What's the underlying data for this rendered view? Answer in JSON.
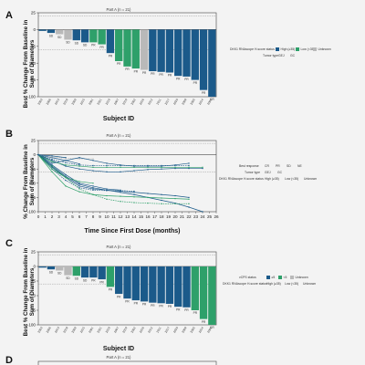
{
  "colors": {
    "high": "#1b5a8a",
    "low": "#2ea06a",
    "unknown": "#b9b9b9",
    "frame": "#444444",
    "ref": "#888888",
    "bg": "#f3f3f3"
  },
  "panels": {
    "A": {
      "letter": "A",
      "title": "Part A (n = 21)",
      "ylabel_lines": [
        "Best % Change From Baseline in",
        "Sum of Diameters"
      ],
      "xlabel": "Subject ID",
      "legend": {
        "l1_label": "DKK1 RNAscope H-score status",
        "l1_items": [
          "High (≥35)",
          "Low (<35)",
          "Unknown"
        ],
        "l2_label": "Tumor type",
        "l2_items": [
          "GEJ",
          "GC"
        ]
      }
    },
    "B": {
      "letter": "B",
      "title": "Part A (n = 21)",
      "ylabel_lines": [
        "% Change From Baseline in",
        "Sum of Diameters"
      ],
      "xlabel": "Time Since First Dose (months)",
      "legend": {
        "r1_label": "Best response",
        "r1_items": [
          "CR",
          "PR",
          "SD",
          "NE"
        ],
        "r2_label": "Tumor type",
        "r2_items": [
          "GEJ",
          "GC"
        ],
        "r3_label": "DKK1 RNAscope H-score status",
        "r3_items": [
          "High (≥35)",
          "Low (<35)",
          "Unknown"
        ]
      }
    },
    "C": {
      "letter": "C",
      "title": "Part A (n = 21)",
      "ylabel_lines": [
        "Best % Change From Baseline in",
        "Sum of Diameters"
      ],
      "xlabel": "Subject ID",
      "legend": {
        "l1_label": "vCPS status",
        "l1_items": [
          "≥5",
          "<5",
          "Unknown"
        ],
        "l2_label": "DKK1 RNAscope H-score status",
        "l2_items": [
          "High (≥35)",
          "Low (<35)",
          "Unknown"
        ]
      }
    },
    "D": {
      "letter": "D",
      "title": "Part A (n = 21)"
    }
  },
  "chart_data": [
    {
      "panel": "A",
      "type": "bar",
      "ylim": [
        -100,
        25
      ],
      "yticks": [
        25,
        0,
        -25,
        -50,
        -75,
        -100
      ],
      "ref_lines": [
        20,
        -30
      ],
      "values": [
        -2,
        -5,
        -7,
        -15,
        -16,
        -19,
        -19,
        -22,
        -35,
        -47,
        -55,
        -58,
        -60,
        -62,
        -63,
        -64,
        -69,
        -70,
        -75,
        -90,
        -100
      ],
      "groups": [
        "high",
        "high",
        "unknown",
        "unknown",
        "high",
        "high",
        "low",
        "low",
        "high",
        "low",
        "low",
        "low",
        "unknown",
        "high",
        "high",
        "high",
        "high",
        "high",
        "high",
        "high",
        "high"
      ],
      "responses": [
        "",
        "SD",
        "SD",
        "SD",
        "SD",
        "SD",
        "PR",
        "PR",
        "PR",
        "PR",
        "PR",
        "PR",
        "PR",
        "PR",
        "PR",
        "PR",
        "PR",
        "PR",
        "PR",
        "PR",
        "CR"
      ],
      "subject_ids": [
        "2003",
        "2006",
        "2013",
        "2018",
        "2009",
        "2015",
        "2001",
        "2021",
        "2019",
        "2007",
        "2010",
        "2002",
        "2016",
        "2012",
        "2011",
        "2017",
        "2020",
        "2008",
        "2005",
        "2014",
        "2004"
      ]
    },
    {
      "panel": "B",
      "type": "line",
      "xlim": [
        0,
        26
      ],
      "ylim": [
        -100,
        25
      ],
      "yticks": [
        25,
        0,
        -25,
        -50,
        -75,
        -100
      ],
      "xticks": [
        0,
        1,
        2,
        3,
        4,
        5,
        6,
        7,
        8,
        9,
        10,
        11,
        12,
        13,
        14,
        15,
        16,
        17,
        18,
        19,
        20,
        21,
        22,
        23,
        24,
        25,
        26
      ],
      "ref_lines": [
        20,
        -30
      ],
      "series": [
        {
          "group": "high",
          "x": [
            0,
            2,
            4,
            6,
            8,
            10,
            12,
            14,
            16,
            18,
            20,
            22
          ],
          "y": [
            0,
            -22,
            -40,
            -55,
            -60,
            -62,
            -64,
            -66,
            -68,
            -70,
            -72,
            -75
          ]
        },
        {
          "group": "high",
          "x": [
            0,
            2,
            4,
            6,
            8,
            10,
            12,
            14,
            16,
            18,
            20,
            22,
            24
          ],
          "y": [
            0,
            -20,
            -38,
            -52,
            -58,
            -62,
            -66,
            -70,
            -75,
            -80,
            -85,
            -92,
            -100
          ]
        },
        {
          "group": "high",
          "x": [
            0,
            2,
            4,
            6,
            8,
            10,
            12,
            14
          ],
          "y": [
            0,
            -25,
            -45,
            -58,
            -62,
            -63,
            -63,
            -64
          ]
        },
        {
          "group": "high",
          "x": [
            0,
            2,
            4,
            6,
            8,
            10,
            12
          ],
          "y": [
            0,
            -18,
            -35,
            -50,
            -55,
            -60,
            -62
          ]
        },
        {
          "group": "low",
          "x": [
            0,
            2,
            4,
            6,
            8,
            10,
            12,
            14,
            16,
            18,
            20,
            22
          ],
          "y": [
            0,
            -30,
            -55,
            -65,
            -70,
            -72,
            -73,
            -74,
            -75,
            -76,
            -77,
            -78
          ]
        },
        {
          "group": "low",
          "x": [
            0,
            2,
            4,
            6,
            8,
            10,
            12,
            14,
            16,
            18,
            20,
            22
          ],
          "y": [
            0,
            -20,
            -40,
            -60,
            -70,
            -78,
            -82,
            -84,
            -85,
            -86,
            -86,
            -86
          ]
        },
        {
          "group": "low",
          "x": [
            0,
            2,
            4,
            6,
            8
          ],
          "y": [
            0,
            -25,
            -40,
            -47,
            -50
          ]
        },
        {
          "group": "high",
          "x": [
            0,
            2,
            4,
            6,
            8,
            10,
            12,
            14,
            16,
            18,
            20,
            22,
            24
          ],
          "y": [
            0,
            -10,
            -20,
            -25,
            -28,
            -30,
            -30,
            -28,
            -26,
            -25,
            -24,
            -24,
            -24
          ]
        },
        {
          "group": "high",
          "x": [
            0,
            2,
            4,
            6,
            8,
            10,
            12,
            14,
            16,
            18,
            20,
            22
          ],
          "y": [
            0,
            -8,
            -14,
            -18,
            -19,
            -19,
            -19,
            -19,
            -19,
            -19,
            -19,
            -19
          ]
        },
        {
          "group": "low",
          "x": [
            0,
            2,
            4,
            6,
            8,
            10,
            12,
            14,
            16,
            18,
            20,
            22,
            24
          ],
          "y": [
            0,
            -12,
            -18,
            -20,
            -22,
            -22,
            -22,
            -22,
            -22,
            -22,
            -22,
            -22,
            -22
          ]
        },
        {
          "group": "high",
          "x": [
            0,
            2,
            4,
            6
          ],
          "y": [
            0,
            -5,
            -10,
            -16
          ]
        },
        {
          "group": "unknown",
          "x": [
            0,
            2,
            4,
            6,
            8
          ],
          "y": [
            0,
            -4,
            -6,
            -7,
            -7
          ]
        },
        {
          "group": "high",
          "x": [
            0,
            2,
            4
          ],
          "y": [
            0,
            -2,
            -5
          ]
        },
        {
          "group": "high",
          "x": [
            0,
            2,
            4,
            6,
            8,
            10,
            12,
            14,
            16,
            18,
            20,
            22
          ],
          "y": [
            0,
            -15,
            -10,
            -5,
            -10,
            -15,
            -18,
            -20,
            -20,
            -20,
            -18,
            -15
          ]
        }
      ]
    },
    {
      "panel": "C",
      "type": "bar",
      "ylim": [
        -100,
        25
      ],
      "yticks": [
        25,
        0,
        -25,
        -50,
        -75,
        -100
      ],
      "ref_lines": [
        20,
        -30
      ],
      "values": [
        -2,
        -5,
        -7,
        -15,
        -16,
        -19,
        -19,
        -22,
        -35,
        -47,
        -55,
        -58,
        -60,
        -62,
        -63,
        -64,
        -69,
        -70,
        -75,
        -90,
        -100
      ],
      "groups": [
        "high",
        "high",
        "unknown",
        "unknown",
        "low",
        "high",
        "high",
        "high",
        "low",
        "high",
        "high",
        "high",
        "high",
        "high",
        "high",
        "high",
        "high",
        "high",
        "low",
        "low",
        "low"
      ],
      "responses": [
        "",
        "SD",
        "SD",
        "SD",
        "SD",
        "SD",
        "PR",
        "PR",
        "PR",
        "PR",
        "PR",
        "PR",
        "PR",
        "PR",
        "PR",
        "PR",
        "PR",
        "PR",
        "PR",
        "PR",
        "CR"
      ],
      "subject_ids": [
        "2003",
        "2006",
        "2013",
        "2018",
        "2009",
        "2015",
        "2001",
        "2021",
        "2019",
        "2007",
        "2010",
        "2002",
        "2016",
        "2012",
        "2011",
        "2017",
        "2020",
        "2008",
        "2005",
        "2014",
        "2004"
      ]
    }
  ]
}
